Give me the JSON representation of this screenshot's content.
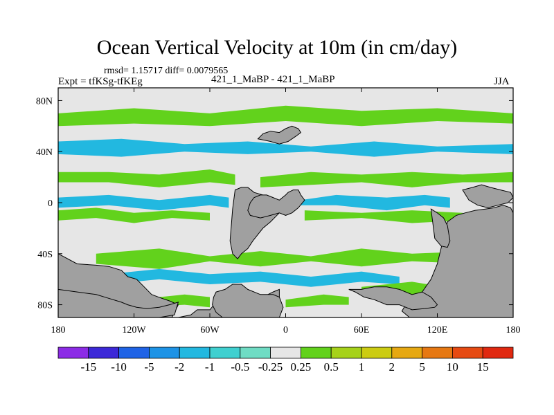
{
  "chart_data": {
    "type": "heatmap",
    "title": "Ocean Vertical Velocity at 10m (in cm/day)",
    "stats_text": "rmsd= 1.15717 diff= 0.0079565",
    "left_label": "Expt = tfKSg-tfKEg",
    "center_label": "421_1_MaBP - 421_1_MaBP",
    "right_label": "JJA",
    "xlim": [
      -180,
      180
    ],
    "ylim": [
      -90,
      90
    ],
    "x_ticks": [
      {
        "value": -180,
        "label": "180"
      },
      {
        "value": -120,
        "label": "120W"
      },
      {
        "value": -60,
        "label": "60W"
      },
      {
        "value": 0,
        "label": "0"
      },
      {
        "value": 60,
        "label": "60E"
      },
      {
        "value": 120,
        "label": "120E"
      },
      {
        "value": 180,
        "label": "180"
      }
    ],
    "y_ticks": [
      {
        "value": 80,
        "label": "80N"
      },
      {
        "value": 40,
        "label": "40N"
      },
      {
        "value": 0,
        "label": "0"
      },
      {
        "value": -40,
        "label": "40S"
      },
      {
        "value": -80,
        "label": "80S"
      }
    ],
    "colorbar": {
      "labels": [
        "-15",
        "-10",
        "-5",
        "-2",
        "-1",
        "-0.5",
        "-0.25",
        "0.25",
        "0.5",
        "1",
        "2",
        "5",
        "10",
        "15"
      ],
      "colors": [
        "#8c2be6",
        "#3c28d8",
        "#1f63e6",
        "#1d93e6",
        "#22b8e0",
        "#3fd0d0",
        "#6fdcc4",
        "#e6e6e6",
        "#62d21c",
        "#a6d21a",
        "#cccc12",
        "#e6a812",
        "#e67812",
        "#e64a12",
        "#e02810"
      ]
    },
    "land_color": "#a0a0a0",
    "background_color": "#e6e6e6",
    "regions": [
      {
        "kind": "land",
        "lon": [
          -180,
          -150,
          -125,
          -105,
          -95,
          -85,
          -75,
          -70,
          -60,
          -55,
          -50,
          -40,
          -30,
          -20,
          -10,
          -5,
          -5,
          -30,
          -50,
          -70,
          -90,
          -110,
          -130,
          -150,
          -180
        ],
        "lat": [
          -90,
          -90,
          -90,
          -90,
          -90,
          -90,
          -88,
          -84,
          -84,
          -78,
          -72,
          -74,
          -74,
          -75,
          -70,
          -68,
          -90,
          -90,
          -90,
          -90,
          -90,
          -90,
          -90,
          -90,
          -90
        ]
      },
      {
        "kind": "land",
        "lon": [
          -180,
          -165,
          -150,
          -140,
          -130,
          -125,
          -118,
          -112,
          -106,
          -98,
          -92,
          -85,
          -90,
          -105,
          -125,
          -150,
          -180
        ],
        "lat": [
          -40,
          -48,
          -49,
          -50,
          -53,
          -58,
          -60,
          -66,
          -72,
          -75,
          -77,
          -80,
          -90,
          -90,
          -90,
          -90,
          -90
        ]
      },
      {
        "kind": "land",
        "lon": [
          -55,
          -48,
          -42,
          -35,
          -30,
          -20,
          -10,
          -5,
          -2,
          -5,
          -12,
          -18,
          -24,
          -30,
          -35,
          -40,
          -45,
          -50,
          -55,
          -58,
          -57,
          -55
        ],
        "lat": [
          -70,
          -68,
          -64,
          -64,
          -68,
          -72,
          -72,
          -74,
          -82,
          -90,
          -90,
          -90,
          -90,
          -90,
          -90,
          -90,
          -90,
          -90,
          -86,
          -80,
          -74,
          -70
        ]
      },
      {
        "kind": "land",
        "lon": [
          -40,
          -35,
          -30,
          -25,
          -18,
          -12,
          -7,
          -5,
          -12,
          -18,
          -22,
          -26,
          -30,
          -35,
          -38,
          -42,
          -44,
          -43,
          -42,
          -40
        ],
        "lat": [
          10,
          12,
          12,
          8,
          6,
          2,
          -2,
          -8,
          -15,
          -20,
          -25,
          -30,
          -36,
          -40,
          -44,
          -40,
          -30,
          -18,
          -5,
          10
        ]
      },
      {
        "kind": "land",
        "lon": [
          -5,
          0,
          5,
          10,
          15,
          12,
          10,
          6,
          2,
          0,
          -5,
          -10,
          -15,
          -20,
          -25,
          -28,
          -30,
          -28,
          -20,
          -12,
          -5
        ],
        "lat": [
          -8,
          -10,
          -8,
          -4,
          2,
          6,
          10,
          10,
          8,
          6,
          2,
          4,
          6,
          6,
          4,
          0,
          -6,
          -10,
          -12,
          -10,
          -8
        ]
      },
      {
        "kind": "land",
        "lon": [
          -22,
          -12,
          -5,
          2,
          8,
          12,
          10,
          5,
          0,
          -5,
          -12,
          -18,
          -22
        ],
        "lat": [
          50,
          48,
          46,
          48,
          52,
          55,
          58,
          60,
          58,
          55,
          56,
          54,
          50
        ]
      },
      {
        "kind": "land",
        "lon": [
          -180,
          -165,
          -150,
          -140,
          -130,
          -125,
          -118,
          -110,
          -100,
          -92,
          -85,
          -88,
          -100,
          -115,
          -130,
          -150,
          -165,
          -180
        ],
        "lat": [
          -68,
          -70,
          -72,
          -75,
          -78,
          -80,
          -82,
          -83,
          -82,
          -80,
          -78,
          -88,
          -90,
          -90,
          -90,
          -90,
          -90,
          -90
        ]
      },
      {
        "kind": "land",
        "lon": [
          128,
          135,
          142,
          150,
          158,
          165,
          172,
          178,
          180,
          180,
          170,
          160,
          150,
          140,
          130,
          120,
          112,
          105,
          98,
          92,
          95,
          100,
          108,
          115,
          120,
          128
        ],
        "lat": [
          -15,
          -10,
          -8,
          -6,
          -5,
          -4,
          -2,
          -4,
          -8,
          -90,
          -90,
          -90,
          -90,
          -90,
          -90,
          -90,
          -90,
          -90,
          -90,
          -85,
          -80,
          -74,
          -70,
          -60,
          -48,
          -15
        ]
      },
      {
        "kind": "land",
        "lon": [
          50,
          60,
          70,
          80,
          90,
          100,
          108,
          115,
          120,
          118,
          110,
          100,
          90,
          80,
          70,
          62,
          55,
          50
        ],
        "lat": [
          -68,
          -68,
          -66,
          -66,
          -68,
          -72,
          -70,
          -74,
          -80,
          -82,
          -83,
          -84,
          -80,
          -80,
          -76,
          -74,
          -70,
          -68
        ]
      },
      {
        "kind": "land",
        "lon": [
          115,
          120,
          125,
          128,
          130,
          128,
          123,
          118,
          115
        ],
        "lat": [
          -5,
          -8,
          -12,
          -18,
          -30,
          -35,
          -34,
          -28,
          -5
        ]
      },
      {
        "kind": "land",
        "lon": [
          140,
          148,
          155,
          162,
          170,
          178,
          180,
          176,
          168,
          160,
          152,
          145,
          140
        ],
        "lat": [
          10,
          12,
          14,
          12,
          10,
          8,
          4,
          0,
          -2,
          -4,
          -2,
          2,
          10
        ]
      },
      {
        "kind": "pos",
        "lon": [
          -180,
          -140,
          -100,
          -60,
          -40,
          -40,
          -60,
          -100,
          -140,
          -180
        ],
        "lat": [
          24,
          24,
          22,
          26,
          22,
          14,
          16,
          12,
          16,
          16
        ]
      },
      {
        "kind": "pos",
        "lon": [
          -20,
          20,
          60,
          100,
          140,
          180,
          180,
          140,
          100,
          60,
          20,
          -20
        ],
        "lat": [
          20,
          24,
          22,
          24,
          22,
          24,
          16,
          16,
          12,
          16,
          14,
          12
        ]
      },
      {
        "kind": "neg",
        "lon": [
          -180,
          -140,
          -100,
          -60,
          -45,
          -45,
          -60,
          -100,
          -140,
          -180
        ],
        "lat": [
          4,
          6,
          2,
          6,
          4,
          -4,
          -2,
          -6,
          -2,
          -4
        ]
      },
      {
        "kind": "neg",
        "lon": [
          12,
          40,
          80,
          110,
          130,
          130,
          110,
          80,
          40,
          12
        ],
        "lat": [
          2,
          6,
          4,
          6,
          4,
          -4,
          -2,
          -6,
          -2,
          -2
        ]
      },
      {
        "kind": "pos",
        "lon": [
          -180,
          -150,
          -120,
          -90,
          -60,
          -60,
          -90,
          -120,
          -150,
          -180
        ],
        "lat": [
          -6,
          -4,
          -8,
          -6,
          -8,
          -14,
          -12,
          -16,
          -12,
          -14
        ]
      },
      {
        "kind": "pos",
        "lon": [
          15,
          60,
          100,
          140,
          140,
          100,
          60,
          15
        ],
        "lat": [
          -6,
          -8,
          -6,
          -8,
          -14,
          -16,
          -12,
          -14
        ]
      },
      {
        "kind": "pos",
        "lon": [
          -180,
          -120,
          -60,
          0,
          60,
          120,
          180,
          180,
          120,
          60,
          0,
          -60,
          -120,
          -180
        ],
        "lat": [
          70,
          74,
          70,
          76,
          72,
          74,
          70,
          62,
          64,
          60,
          64,
          60,
          62,
          60
        ]
      },
      {
        "kind": "neg",
        "lon": [
          -180,
          -130,
          -80,
          -30,
          20,
          70,
          120,
          180,
          180,
          120,
          70,
          20,
          -30,
          -80,
          -130,
          -180
        ],
        "lat": [
          48,
          50,
          46,
          48,
          44,
          48,
          44,
          46,
          38,
          40,
          36,
          40,
          38,
          40,
          36,
          38
        ]
      },
      {
        "kind": "pos",
        "lon": [
          -150,
          -100,
          -60,
          -20,
          20,
          60,
          100,
          150,
          150,
          100,
          60,
          20,
          -20,
          -60,
          -100,
          -150
        ],
        "lat": [
          -40,
          -36,
          -42,
          -38,
          -42,
          -36,
          -40,
          -38,
          -48,
          -46,
          -50,
          -46,
          -50,
          -46,
          -52,
          -48
        ]
      },
      {
        "kind": "neg",
        "lon": [
          -140,
          -100,
          -60,
          -20,
          20,
          60,
          90,
          90,
          60,
          20,
          -20,
          -60,
          -100,
          -140
        ],
        "lat": [
          -56,
          -52,
          -56,
          -54,
          -58,
          -54,
          -58,
          -64,
          -62,
          -66,
          -62,
          -64,
          -60,
          -64
        ]
      },
      {
        "kind": "pos",
        "lon": [
          -120,
          -80,
          -60,
          -60,
          -80,
          -120
        ],
        "lat": [
          -76,
          -72,
          -74,
          -82,
          -80,
          -82
        ]
      },
      {
        "kind": "pos",
        "lon": [
          0,
          30,
          50,
          50,
          30,
          0
        ],
        "lat": [
          -76,
          -72,
          -74,
          -80,
          -80,
          -82
        ]
      },
      {
        "kind": "pos",
        "lon": [
          60,
          100,
          125,
          125,
          100,
          60
        ],
        "lat": [
          -66,
          -62,
          -66,
          -74,
          -72,
          -72
        ]
      }
    ]
  }
}
